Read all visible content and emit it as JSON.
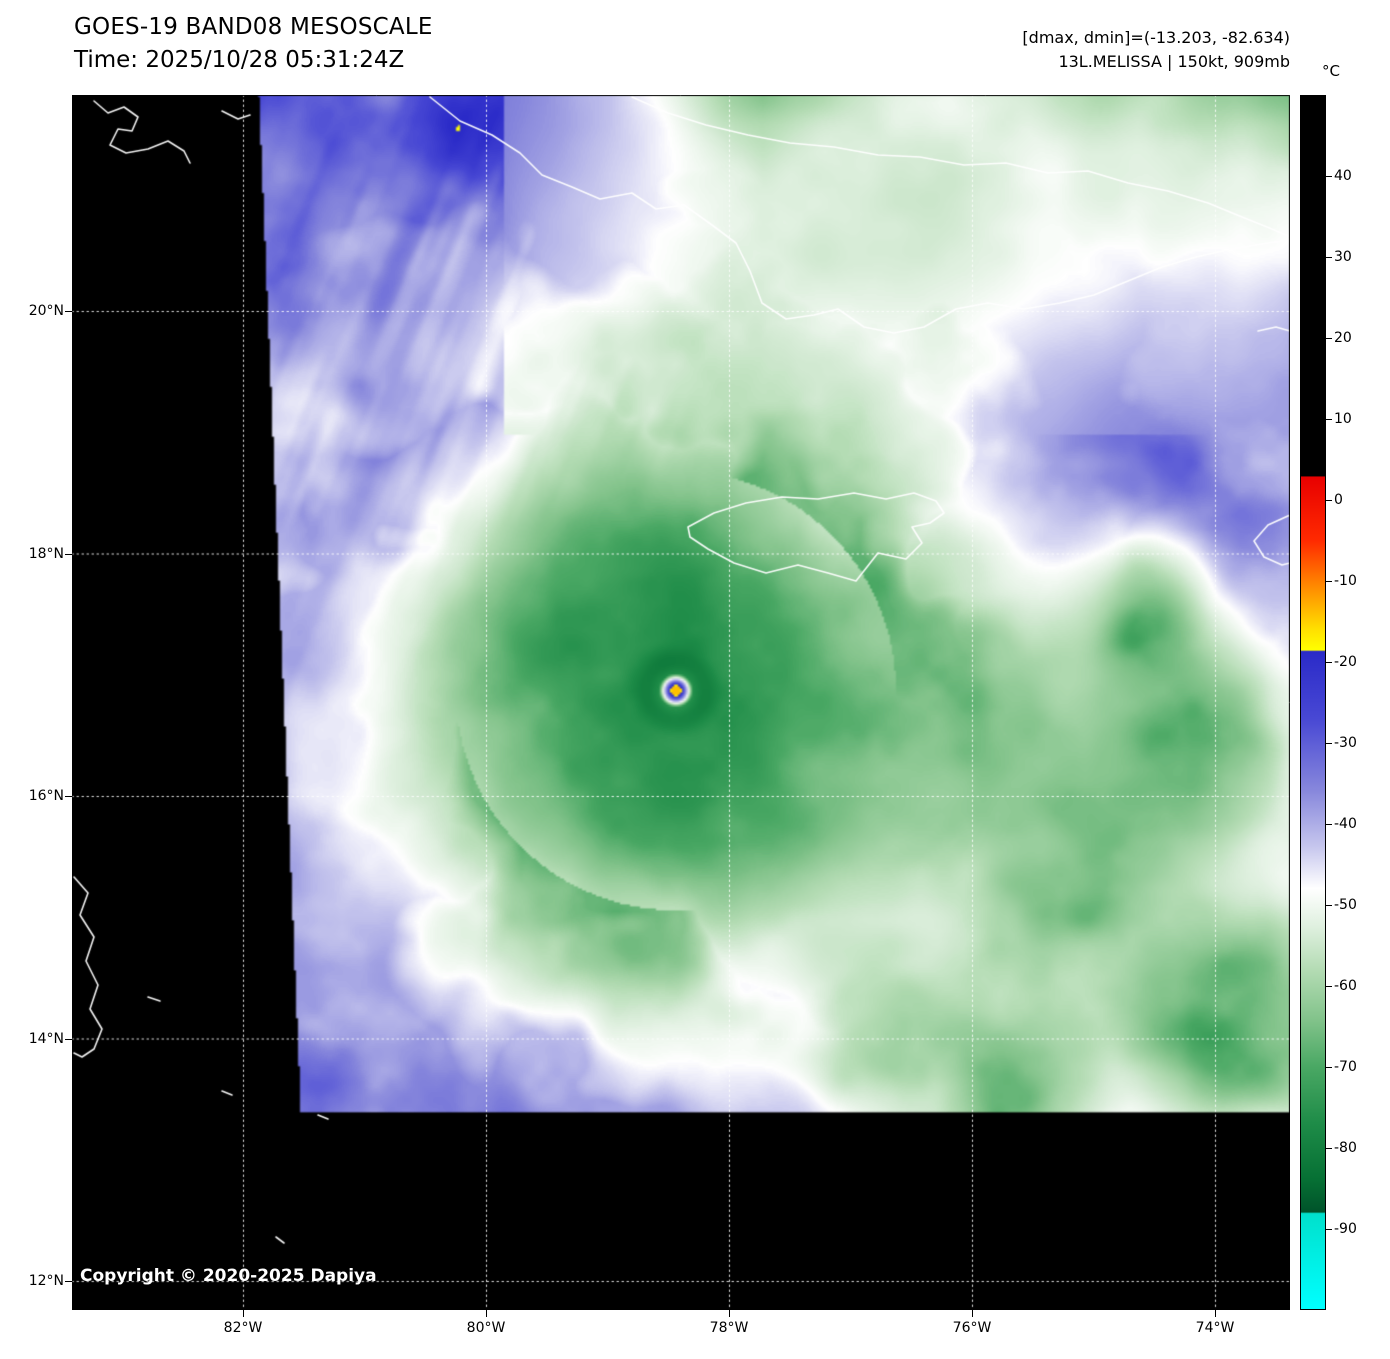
{
  "header": {
    "title": "GOES-19 BAND08 MESOSCALE",
    "time": "Time: 2025/10/28 05:31:24Z",
    "range": "[dmax, dmin]=(-13.203, -82.634)",
    "storm": "13L.MELISSA | 150kt, 909mb"
  },
  "footer": {
    "copyright": "Copyright © 2020-2025 Dapiya"
  },
  "axes": {
    "lat_ticks": [
      {
        "label": "20°N",
        "value": 20
      },
      {
        "label": "18°N",
        "value": 18
      },
      {
        "label": "16°N",
        "value": 16
      },
      {
        "label": "14°N",
        "value": 14
      },
      {
        "label": "12°N",
        "value": 12
      }
    ],
    "lon_ticks": [
      {
        "label": "82°W",
        "value": 82
      },
      {
        "label": "80°W",
        "value": 80
      },
      {
        "label": "78°W",
        "value": 78
      },
      {
        "label": "76°W",
        "value": 76
      },
      {
        "label": "74°W",
        "value": 74
      }
    ]
  },
  "colorbar": {
    "unit": "°C",
    "ticks": [
      {
        "label": "40",
        "value": 40
      },
      {
        "label": "30",
        "value": 30
      },
      {
        "label": "20",
        "value": 20
      },
      {
        "label": "10",
        "value": 10
      },
      {
        "label": "0",
        "value": 0
      },
      {
        "label": "-10",
        "value": -10
      },
      {
        "label": "-20",
        "value": -20
      },
      {
        "label": "-30",
        "value": -30
      },
      {
        "label": "-40",
        "value": -40
      },
      {
        "label": "-50",
        "value": -50
      },
      {
        "label": "-60",
        "value": -60
      },
      {
        "label": "-70",
        "value": -70
      },
      {
        "label": "-80",
        "value": -80
      },
      {
        "label": "-90",
        "value": -90
      }
    ],
    "stops": [
      {
        "t": 50,
        "c": "#000000"
      },
      {
        "t": 3,
        "c": "#000000"
      },
      {
        "t": 2.9,
        "c": "#e80000"
      },
      {
        "t": -5,
        "c": "#ff2a00"
      },
      {
        "t": -11,
        "c": "#ff9000"
      },
      {
        "t": -16,
        "c": "#ffe000"
      },
      {
        "t": -18.5,
        "c": "#ffff00"
      },
      {
        "t": -18.7,
        "c": "#2a2ac8"
      },
      {
        "t": -27,
        "c": "#4848d4"
      },
      {
        "t": -36,
        "c": "#8888dc"
      },
      {
        "t": -43,
        "c": "#c8c8ee"
      },
      {
        "t": -48,
        "c": "#ffffff"
      },
      {
        "t": -53,
        "c": "#ddefdd"
      },
      {
        "t": -58,
        "c": "#b4dcb4"
      },
      {
        "t": -64,
        "c": "#84c48c"
      },
      {
        "t": -70,
        "c": "#4aa864"
      },
      {
        "t": -77,
        "c": "#1e8c48"
      },
      {
        "t": -84,
        "c": "#067034"
      },
      {
        "t": -88,
        "c": "#00532a"
      },
      {
        "t": -88.2,
        "c": "#00e0cc"
      },
      {
        "t": -100,
        "c": "#00ffff"
      }
    ]
  }
}
